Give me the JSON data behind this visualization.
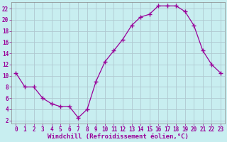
{
  "x": [
    0,
    1,
    2,
    3,
    4,
    5,
    6,
    7,
    8,
    9,
    10,
    11,
    12,
    13,
    14,
    15,
    16,
    17,
    18,
    19,
    20,
    21,
    22,
    23
  ],
  "y": [
    10.5,
    8.0,
    8.0,
    6.0,
    5.0,
    4.5,
    4.5,
    2.5,
    4.0,
    9.0,
    12.5,
    14.5,
    16.5,
    19.0,
    20.5,
    21.0,
    22.5,
    22.5,
    22.5,
    21.5,
    19.0,
    14.5,
    12.0,
    10.5
  ],
  "line_color": "#990099",
  "marker": "+",
  "marker_size": 4,
  "bg_color": "#c8eef0",
  "grid_color": "#b0c8d0",
  "xlabel": "Windchill (Refroidissement éolien,°C)",
  "xlabel_color": "#990099",
  "ylabel_ticks": [
    2,
    4,
    6,
    8,
    10,
    12,
    14,
    16,
    18,
    20,
    22
  ],
  "xlim": [
    -0.5,
    23.5
  ],
  "ylim": [
    1.5,
    23.2
  ],
  "tick_color": "#990099",
  "label_fontsize": 5.5,
  "xlabel_fontsize": 6.5
}
